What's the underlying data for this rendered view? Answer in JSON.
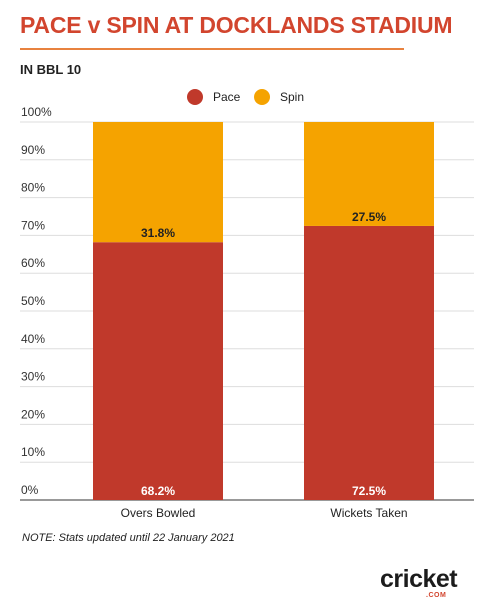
{
  "header": {
    "title": "PACE v SPIN AT DOCKLANDS STADIUM",
    "subtitle": "IN BBL 10"
  },
  "note": "NOTE: Stats updated until 22 January 2021",
  "brand": {
    "logo_text": "cricket",
    "logo_suffix": ".COM"
  },
  "colors": {
    "pace": "#c0392b",
    "spin": "#f5a300",
    "title": "#d2452e",
    "rule": "#e8823f"
  },
  "chart_data": {
    "type": "bar",
    "stacked": true,
    "categories": [
      "Overs Bowled",
      "Wickets Taken"
    ],
    "series": [
      {
        "name": "Pace",
        "values": [
          68.2,
          72.5
        ],
        "labels": [
          "68.2%",
          "72.5%"
        ]
      },
      {
        "name": "Spin",
        "values": [
          31.8,
          27.5
        ],
        "labels": [
          "31.8%",
          "27.5%"
        ]
      }
    ],
    "ylim": [
      0,
      100
    ],
    "yticks": [
      "0%",
      "10%",
      "20%",
      "30%",
      "40%",
      "50%",
      "60%",
      "70%",
      "80%",
      "90%",
      "100%"
    ],
    "legend": "top-center",
    "grid": true
  }
}
